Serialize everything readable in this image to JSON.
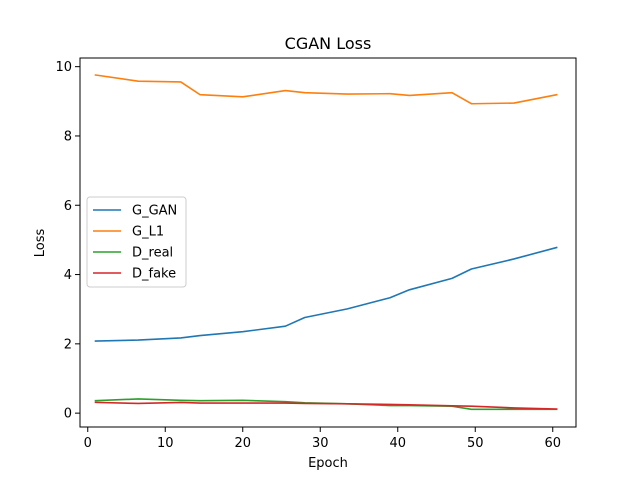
{
  "chart_data": {
    "type": "line",
    "title": "CGAN Loss",
    "xlabel": "Epoch",
    "ylabel": "Loss",
    "xlim": [
      -1,
      63
    ],
    "ylim": [
      -0.4,
      10.25
    ],
    "xticks": [
      0,
      10,
      20,
      30,
      40,
      50,
      60
    ],
    "yticks": [
      0,
      2,
      4,
      6,
      8,
      10
    ],
    "grid": false,
    "legend_position": "center-left",
    "series": [
      {
        "name": "G_GAN",
        "color": "#1f77b4",
        "x": [
          1,
          6.5,
          12,
          14.5,
          20,
          25.5,
          28,
          33.5,
          39,
          41.5,
          47,
          49.5,
          55,
          60.5
        ],
        "y": [
          2.08,
          2.11,
          2.17,
          2.24,
          2.35,
          2.51,
          2.76,
          3.01,
          3.33,
          3.56,
          3.89,
          4.16,
          4.45,
          4.78
        ]
      },
      {
        "name": "G_L1",
        "color": "#ff7f0e",
        "x": [
          1,
          6.5,
          12,
          14.5,
          20,
          25.5,
          28,
          33.5,
          39,
          41.5,
          47,
          49.5,
          55,
          60.5
        ],
        "y": [
          9.76,
          9.58,
          9.56,
          9.19,
          9.13,
          9.31,
          9.25,
          9.21,
          9.22,
          9.17,
          9.25,
          8.93,
          8.95,
          9.19
        ]
      },
      {
        "name": "D_real",
        "color": "#2ca02c",
        "x": [
          1,
          6.5,
          12,
          14.5,
          20,
          25.5,
          28,
          33.5,
          39,
          41.5,
          47,
          49.5,
          55,
          60.5
        ],
        "y": [
          0.36,
          0.41,
          0.37,
          0.36,
          0.37,
          0.33,
          0.3,
          0.27,
          0.22,
          0.22,
          0.2,
          0.11,
          0.11,
          0.11
        ]
      },
      {
        "name": "D_fake",
        "color": "#d62728",
        "x": [
          1,
          6.5,
          12,
          14.5,
          20,
          25.5,
          28,
          33.5,
          39,
          41.5,
          47,
          49.5,
          55,
          60.5
        ],
        "y": [
          0.31,
          0.28,
          0.31,
          0.29,
          0.29,
          0.29,
          0.28,
          0.27,
          0.25,
          0.24,
          0.21,
          0.2,
          0.15,
          0.12
        ]
      }
    ]
  }
}
